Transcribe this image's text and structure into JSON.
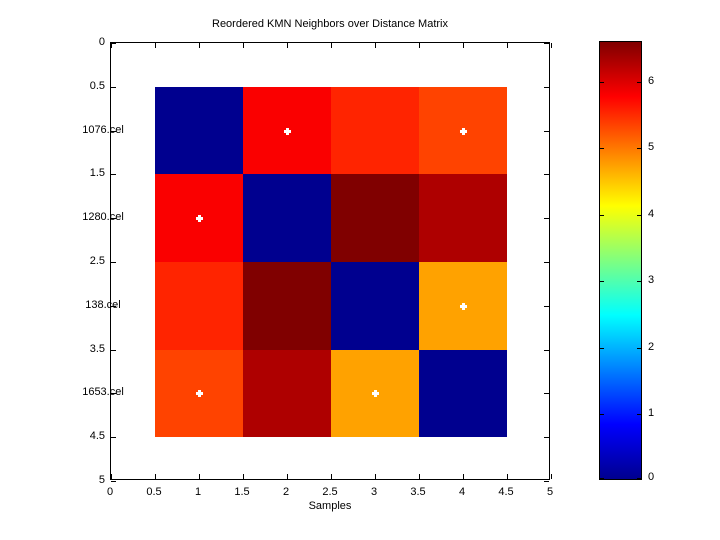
{
  "chart_data": {
    "type": "heatmap",
    "title": "Reordered KMN Neighbors over Distance Matrix",
    "xlabel": "Samples",
    "xlim": [
      0,
      5
    ],
    "ylim": [
      0,
      5
    ],
    "y_axis_reversed": true,
    "grid": false,
    "x_axis": {
      "ticks": [
        {
          "v": 0,
          "label": "0"
        },
        {
          "v": 0.5,
          "label": "0.5"
        },
        {
          "v": 1,
          "label": "1"
        },
        {
          "v": 1.5,
          "label": "1.5"
        },
        {
          "v": 2,
          "label": "2"
        },
        {
          "v": 2.5,
          "label": "2.5"
        },
        {
          "v": 3,
          "label": "3"
        },
        {
          "v": 3.5,
          "label": "3.5"
        },
        {
          "v": 4,
          "label": "4"
        },
        {
          "v": 4.5,
          "label": "4.5"
        },
        {
          "v": 5,
          "label": "5"
        }
      ]
    },
    "y_axis": {
      "tick_values": [
        0,
        0.5,
        1,
        1.5,
        2,
        2.5,
        3,
        3.5,
        4,
        4.5,
        5
      ],
      "numeric_labels": [
        {
          "v": 0,
          "label": "0"
        },
        {
          "v": 0.5,
          "label": "0.5"
        },
        {
          "v": 1.5,
          "label": "1.5"
        },
        {
          "v": 2.5,
          "label": "2.5"
        },
        {
          "v": 3.5,
          "label": "3.5"
        },
        {
          "v": 4.5,
          "label": "4.5"
        },
        {
          "v": 5,
          "label": "5"
        }
      ],
      "sample_labels": [
        {
          "v": 1,
          "label": "1076.cel"
        },
        {
          "v": 2,
          "label": "1280.cel"
        },
        {
          "v": 3,
          "label": "138.cel"
        },
        {
          "v": 4,
          "label": "1653.cel"
        }
      ]
    },
    "heatmap": {
      "extent": [
        0.5,
        4.5
      ],
      "row_names": [
        "1076.cel",
        "1280.cel",
        "138.cel",
        "1653.cel"
      ],
      "values": [
        [
          0,
          5.8,
          5.6,
          5.4
        ],
        [
          5.8,
          0,
          6.6,
          6.3
        ],
        [
          5.6,
          6.6,
          0,
          4.7
        ],
        [
          5.4,
          6.3,
          4.7,
          0
        ]
      ],
      "cell_colors": [
        [
          "#00008F",
          "#FA0000",
          "#FF2400",
          "#FF4300"
        ],
        [
          "#FA0000",
          "#00008F",
          "#800000",
          "#AE0000"
        ],
        [
          "#FF2400",
          "#800000",
          "#00008F",
          "#FFA200"
        ],
        [
          "#FF4300",
          "#AE0000",
          "#FFA200",
          "#00008F"
        ]
      ]
    },
    "markers": {
      "shape": "white-cross",
      "color": "#FFFFFF",
      "positions_row_col": [
        [
          1,
          2
        ],
        [
          1,
          4
        ],
        [
          2,
          1
        ],
        [
          3,
          4
        ],
        [
          4,
          1
        ],
        [
          4,
          3
        ]
      ]
    },
    "colorbar": {
      "min": 0,
      "max": 6.6,
      "colormap": "jet",
      "ticks": [
        {
          "v": 0,
          "label": "0"
        },
        {
          "v": 1,
          "label": "1"
        },
        {
          "v": 2,
          "label": "2"
        },
        {
          "v": 3,
          "label": "3"
        },
        {
          "v": 4,
          "label": "4"
        },
        {
          "v": 5,
          "label": "5"
        },
        {
          "v": 6,
          "label": "6"
        }
      ],
      "gradient_stops": [
        {
          "pos": 0,
          "color": "#00008F"
        },
        {
          "pos": 0.125,
          "color": "#0000FF"
        },
        {
          "pos": 0.375,
          "color": "#00FFFF"
        },
        {
          "pos": 0.625,
          "color": "#FFFF00"
        },
        {
          "pos": 0.875,
          "color": "#FF0000"
        },
        {
          "pos": 1,
          "color": "#800000"
        }
      ]
    }
  }
}
